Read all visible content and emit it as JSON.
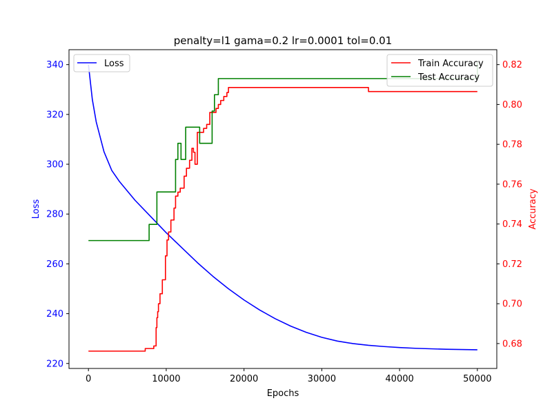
{
  "chart_data": {
    "type": "line",
    "title": "penalty=l1 gama=0.2 lr=0.0001 tol=0.01",
    "xlabel": "Epochs",
    "ylabel_left": "Loss",
    "ylabel_right": "Accuracy",
    "xlim": [
      -2500,
      52500
    ],
    "ylim_left": [
      218,
      346
    ],
    "ylim_right": [
      0.6675,
      0.8275
    ],
    "x_ticks": [
      0,
      10000,
      20000,
      30000,
      40000,
      50000
    ],
    "x_tick_labels": [
      "0",
      "10000",
      "20000",
      "30000",
      "40000",
      "50000"
    ],
    "y_left_ticks": [
      220,
      240,
      260,
      280,
      300,
      320,
      340
    ],
    "y_left_tick_labels": [
      "220",
      "240",
      "260",
      "280",
      "300",
      "320",
      "340"
    ],
    "y_right_ticks": [
      0.68,
      0.7,
      0.72,
      0.74,
      0.76,
      0.78,
      0.8,
      0.82
    ],
    "y_right_tick_labels": [
      "0.68",
      "0.70",
      "0.72",
      "0.74",
      "0.76",
      "0.78",
      "0.80",
      "0.82"
    ],
    "legend_left": {
      "position": "upper-left",
      "entries": [
        "Loss"
      ]
    },
    "legend_right": {
      "position": "upper-right",
      "entries": [
        "Train Accuracy",
        "Test Accuracy"
      ]
    },
    "colors": {
      "loss": "#0000ff",
      "train": "#ff0000",
      "test": "#008000"
    },
    "series": [
      {
        "name": "Loss",
        "axis": "left",
        "x": [
          0,
          500,
          1000,
          2000,
          3000,
          4000,
          6000,
          8000,
          10000,
          12000,
          14000,
          16000,
          18000,
          20000,
          22000,
          24000,
          26000,
          28000,
          30000,
          32000,
          34000,
          36000,
          38000,
          40000,
          42000,
          44000,
          46000,
          48000,
          50000
        ],
        "y": [
          340,
          326,
          317,
          305,
          297.5,
          293,
          285.5,
          279,
          272.5,
          266.5,
          260.5,
          255,
          250,
          245.5,
          241.5,
          238,
          235,
          232.5,
          230.5,
          229,
          228,
          227.3,
          226.8,
          226.4,
          226.1,
          225.9,
          225.7,
          225.6,
          225.5
        ]
      },
      {
        "name": "Train Accuracy",
        "axis": "right",
        "step": true,
        "x": [
          0,
          7300,
          8400,
          8700,
          8800,
          8900,
          9000,
          9200,
          9500,
          9900,
          10100,
          10300,
          10600,
          11000,
          11200,
          11500,
          11800,
          12300,
          12600,
          13000,
          13300,
          13500,
          13700,
          14000,
          14300,
          14800,
          15200,
          15600,
          16000,
          16400,
          16700,
          17000,
          17400,
          17800,
          18000,
          36000,
          50000
        ],
        "y": [
          0.6762,
          0.6775,
          0.6788,
          0.688,
          0.693,
          0.696,
          0.7,
          0.705,
          0.712,
          0.724,
          0.732,
          0.736,
          0.742,
          0.748,
          0.754,
          0.756,
          0.758,
          0.764,
          0.768,
          0.772,
          0.778,
          0.776,
          0.77,
          0.786,
          0.786,
          0.788,
          0.79,
          0.796,
          0.796,
          0.798,
          0.8,
          0.802,
          0.804,
          0.806,
          0.8085,
          0.8065,
          0.8065
        ]
      },
      {
        "name": "Test Accuracy",
        "axis": "right",
        "step": true,
        "x": [
          0,
          7800,
          8800,
          11200,
          11500,
          11900,
          12500,
          14300,
          15900,
          16200,
          16700,
          49800,
          50000
        ],
        "y": [
          0.7317,
          0.7398,
          0.7561,
          0.7724,
          0.7805,
          0.7724,
          0.7886,
          0.7805,
          0.7967,
          0.8049,
          0.813,
          0.813,
          0.8211
        ]
      }
    ]
  }
}
